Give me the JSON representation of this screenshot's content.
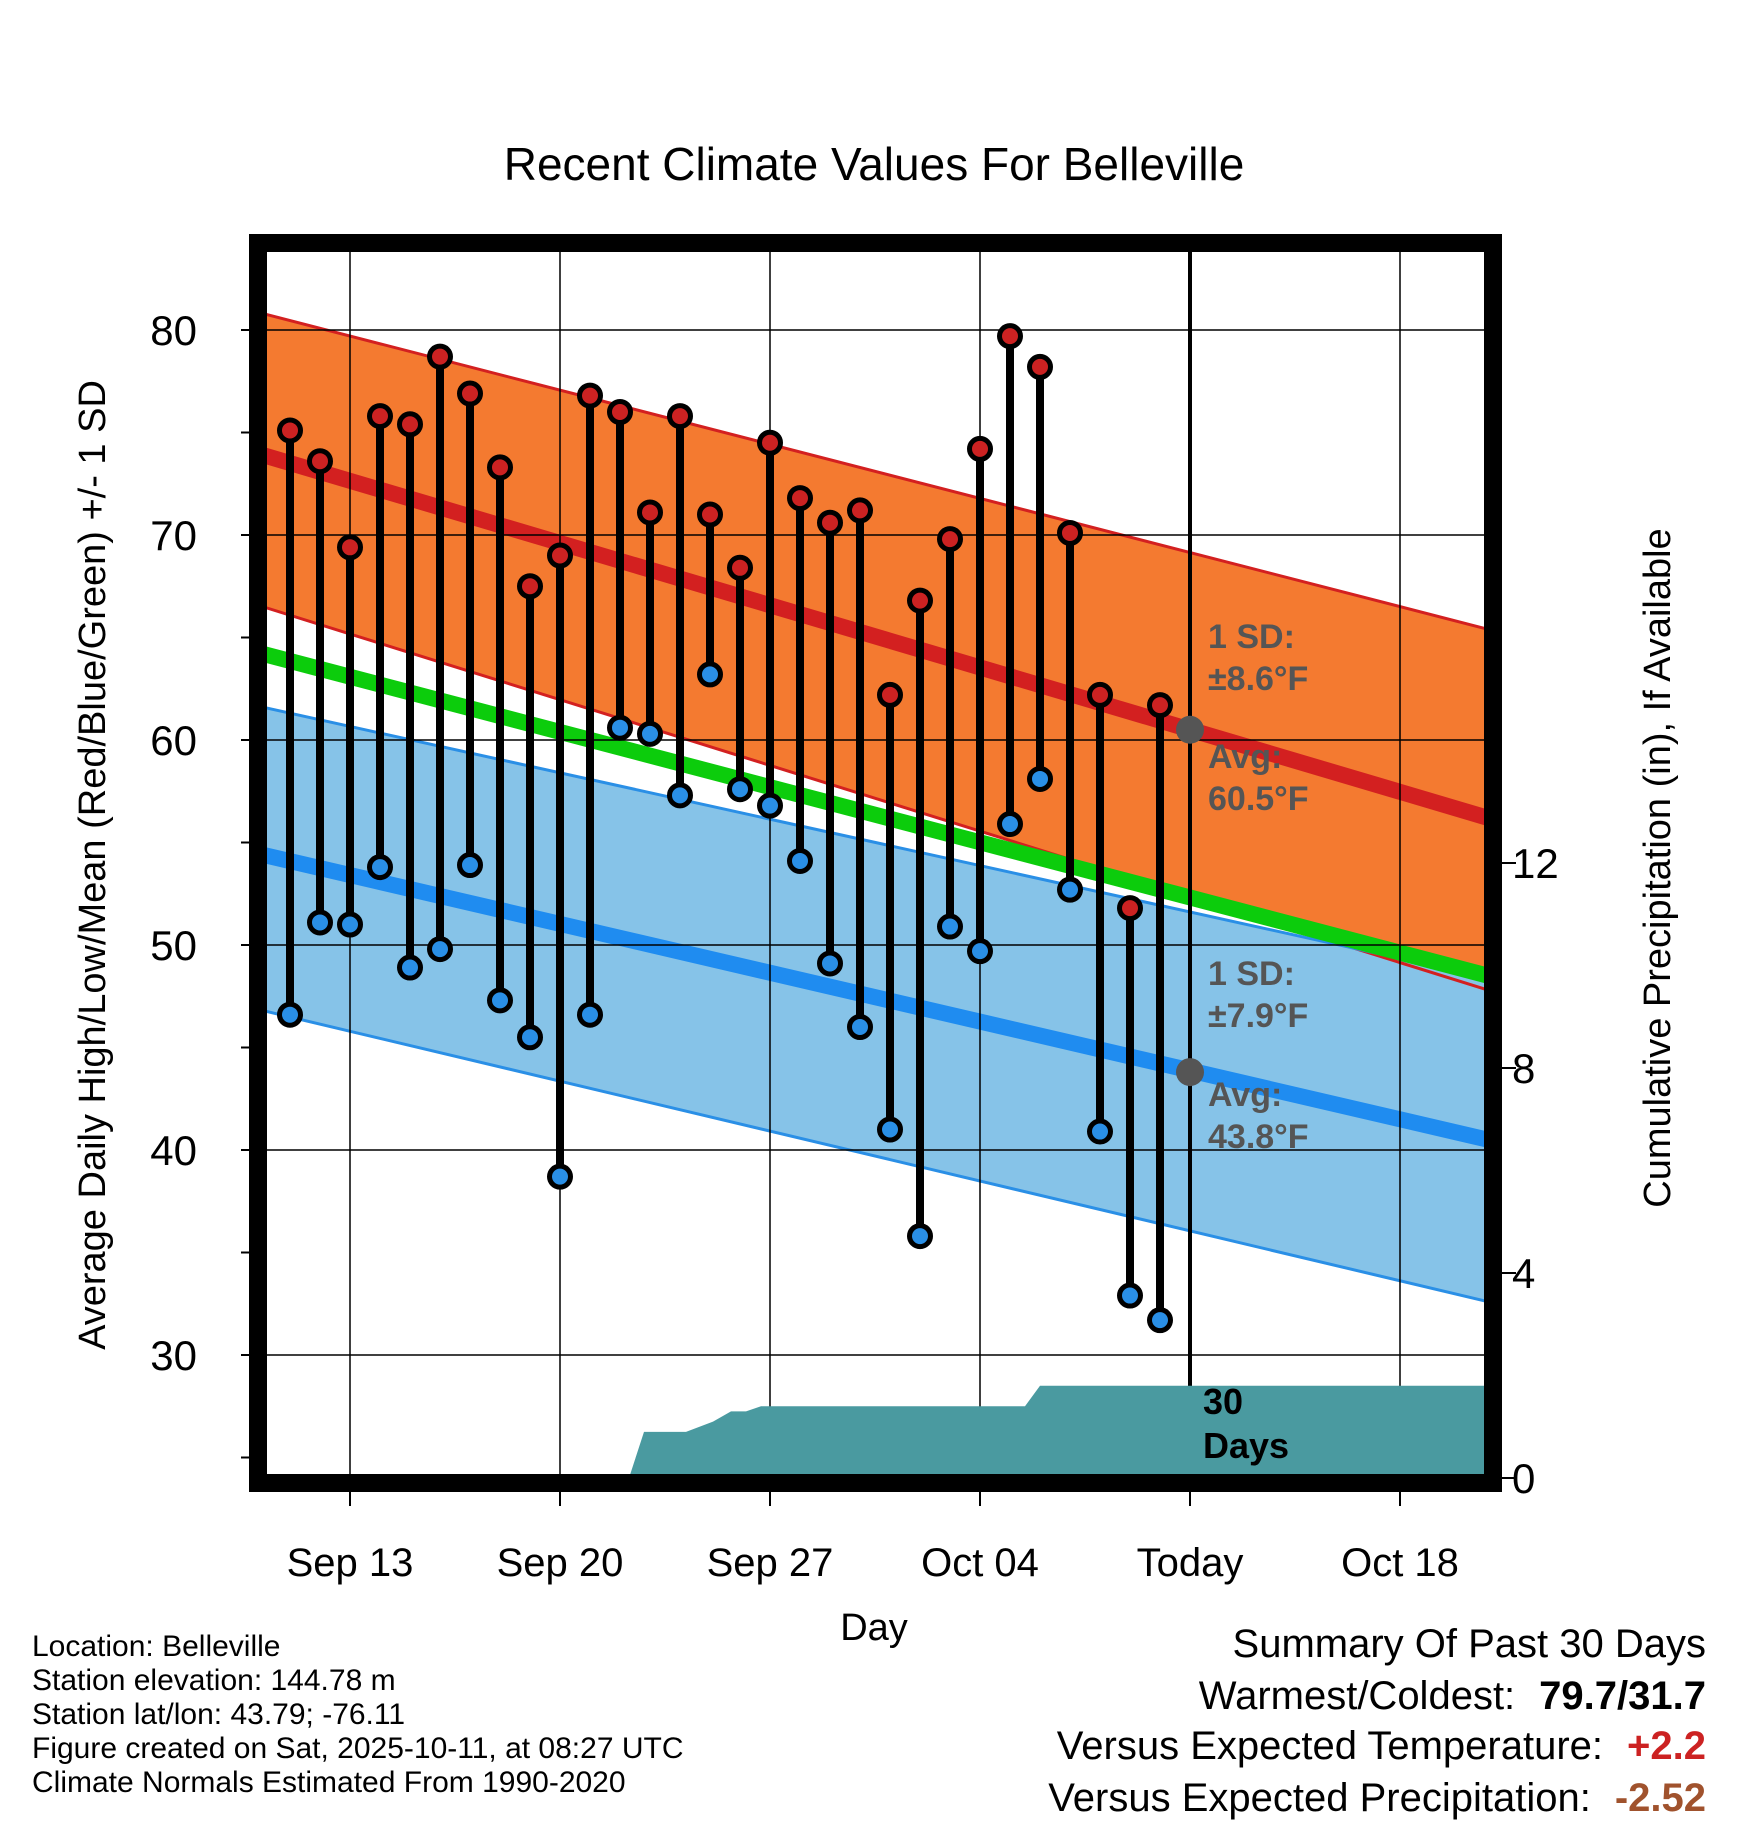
{
  "chart_data": {
    "type": "line",
    "title": "Recent Climate Values For Belleville",
    "xlabel": "Day",
    "ylabel": "Average Daily High/Low/Mean (Red/Blue/Green) +/- 1 SD",
    "y2label": "Cumulative Precipitation (in), If Available",
    "ylim": [
      24,
      84
    ],
    "y2lim": [
      0,
      24
    ],
    "xlim": [
      -2.75,
      38.25
    ],
    "y_ticks": [
      30,
      40,
      50,
      60,
      70,
      80
    ],
    "y2_ticks": [
      0,
      4,
      8,
      12
    ],
    "x_ticks": [
      {
        "day": 0,
        "label": "Sep 13"
      },
      {
        "day": 7,
        "label": "Sep 20"
      },
      {
        "day": 14,
        "label": "Sep 27"
      },
      {
        "day": 21,
        "label": "Oct 04"
      },
      {
        "day": 28,
        "label": "Today"
      },
      {
        "day": 35,
        "label": "Oct 18"
      }
    ],
    "days": [
      -2,
      -1,
      0,
      1,
      2,
      3,
      4,
      5,
      6,
      7,
      8,
      9,
      10,
      11,
      12,
      13,
      14,
      15,
      16,
      17,
      18,
      19,
      20,
      21,
      22,
      23,
      24,
      25,
      26,
      27
    ],
    "series": [
      {
        "name": "Daily High",
        "color": "#cc2222",
        "values": [
          75.1,
          73.6,
          69.4,
          75.8,
          75.4,
          78.7,
          76.9,
          73.3,
          67.5,
          69.0,
          76.8,
          76.0,
          71.1,
          75.8,
          71.0,
          68.4,
          74.5,
          71.8,
          70.6,
          71.2,
          62.2,
          66.8,
          69.8,
          74.2,
          79.7,
          78.2,
          70.1,
          62.2,
          51.8,
          61.7
        ]
      },
      {
        "name": "Daily Low",
        "color": "#2a8fe6",
        "values": [
          46.6,
          51.1,
          51.0,
          53.8,
          48.9,
          49.8,
          53.9,
          47.3,
          45.5,
          38.7,
          46.6,
          60.6,
          60.3,
          57.3,
          63.2,
          57.6,
          56.8,
          54.1,
          49.1,
          46.0,
          41.0,
          35.8,
          50.9,
          49.7,
          55.9,
          58.1,
          52.7,
          40.9,
          32.9,
          31.7
        ]
      }
    ],
    "normals": {
      "high_mean": [
        73.9,
        56.2
      ],
      "high_sd_upper": [
        80.8,
        65.4
      ],
      "high_sd_lower": [
        66.5,
        47.8
      ],
      "low_mean": [
        54.4,
        40.5
      ],
      "low_sd_upper": [
        61.6,
        48.4
      ],
      "low_sd_lower": [
        46.8,
        32.6
      ],
      "overall_mean": [
        64.2,
        48.5
      ]
    },
    "precip_cumulative": {
      "x": [
        -3,
        6.75,
        7.25,
        9.3,
        9.8,
        10.8,
        11.2,
        12.1,
        12.7,
        13.2,
        13.7,
        14.2,
        22.5,
        23.0,
        24.0,
        38.3
      ],
      "y": [
        0,
        0,
        0,
        0,
        0.9,
        0.9,
        0.9,
        1.1,
        1.3,
        1.3,
        1.4,
        1.4,
        1.4,
        1.8,
        1.8,
        1.8
      ]
    },
    "annotations": {
      "high_sd": "1 SD:",
      "high_sd_value": "±8.6°F",
      "high_avg": "Avg:",
      "high_avg_value": "60.5°F",
      "low_sd": "1 SD:",
      "low_sd_value": "±7.9°F",
      "low_avg": "Avg:",
      "low_avg_value": "43.8°F",
      "window_count": "30",
      "window_unit": "Days",
      "today_high_avg": 60.5,
      "today_low_avg": 43.8
    }
  },
  "info": {
    "location": "Location: Belleville",
    "elevation": "Station elevation: 144.78 m",
    "latlon": "Station lat/lon: 43.79; -76.11",
    "created": "Figure created on Sat, 2025-10-11, at 08:27 UTC",
    "normals": "Climate Normals Estimated From 1990-2020"
  },
  "summary": {
    "title": "Summary Of Past 30 Days",
    "warm_cold_label": "Warmest/Coldest:",
    "warm_cold_value": "79.7/31.7",
    "temp_label": "Versus Expected Temperature:",
    "temp_value": "+2.2",
    "precip_label": "Versus Expected Precipitation:",
    "precip_value": "-2.52",
    "temp_color": "#cc2222",
    "precip_color": "#a0522d"
  }
}
